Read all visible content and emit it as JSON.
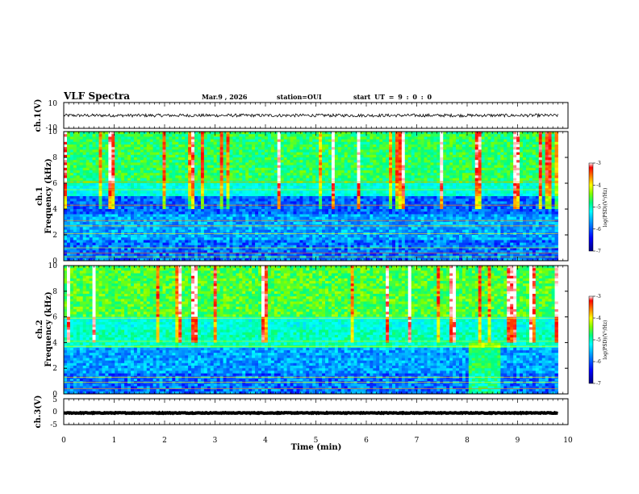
{
  "header": {
    "title": "VLF Spectra",
    "date": "Mar.9 , 2026",
    "station": "station=OUI",
    "start": "start UT = 9 : 0 : 0"
  },
  "colors": {
    "trace": "#000000",
    "colormap": [
      "#000080",
      "#0000ff",
      "#0080ff",
      "#00ffff",
      "#00ff80",
      "#80ff00",
      "#ffff00",
      "#ff8000",
      "#ff0000",
      "#ffffff"
    ]
  },
  "chart_data": [
    {
      "type": "line",
      "name": "ch1-waveform",
      "ylabel": "ch.1(V)",
      "ylim": [
        -10,
        10
      ],
      "ytick_labels": [
        "10",
        "-10"
      ],
      "level": 0,
      "noise_amplitude": 1.2,
      "xlim": [
        0,
        10
      ],
      "data_end_min": 9.8
    },
    {
      "type": "heatmap",
      "name": "ch1-spectrogram",
      "ylabel": "ch.1\nFrequency (kHz)",
      "ylim": [
        0,
        10
      ],
      "ytick_labels": [
        "0",
        "2",
        "4",
        "6",
        "8",
        "10"
      ],
      "xlim": [
        0,
        10
      ],
      "data_end_min": 9.8,
      "colorbar": {
        "label": "log(PSD)(V²/Hz)",
        "range": [
          -7,
          -3
        ],
        "tick_labels": [
          "-3",
          "-4",
          "-5",
          "-6",
          "-7"
        ]
      }
    },
    {
      "type": "heatmap",
      "name": "ch2-spectrogram",
      "ylabel": "ch.2\nFrequency (kHz)",
      "ylim": [
        0,
        10
      ],
      "ytick_labels": [
        "0",
        "2",
        "4",
        "6",
        "8",
        "10"
      ],
      "xlim": [
        0,
        10
      ],
      "data_end_min": 9.8,
      "colorbar": {
        "label": "log(PSD)(V²/Hz)",
        "range": [
          -7,
          -3
        ],
        "tick_labels": [
          "-3",
          "-4",
          "-5",
          "-6",
          "-7"
        ]
      }
    },
    {
      "type": "line",
      "name": "ch3-waveform",
      "ylabel": "ch.3(V)",
      "ylim": [
        -5,
        5
      ],
      "ytick_labels": [
        "5",
        "0",
        "-5"
      ],
      "level": -0.5,
      "noise_amplitude": 0.15,
      "xlim": [
        0,
        10
      ],
      "data_end_min": 9.8
    }
  ],
  "xaxis": {
    "label": "Time (min)",
    "tick_labels": [
      "0",
      "1",
      "2",
      "3",
      "4",
      "5",
      "6",
      "7",
      "8",
      "9",
      "10"
    ],
    "range": [
      0,
      10
    ]
  }
}
